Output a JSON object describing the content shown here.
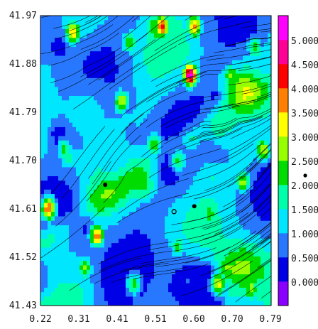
{
  "chart_data": {
    "type": "heatmap",
    "overlay": "streamlines",
    "x_ticks": [
      "0.22",
      "0.31",
      "0.41",
      "0.51",
      "0.60",
      "0.70",
      "0.79"
    ],
    "y_ticks": [
      "41.97",
      "41.88",
      "41.79",
      "41.70",
      "41.61",
      "41.52",
      "41.43"
    ],
    "xlim": [
      0.22,
      0.79
    ],
    "ylim": [
      41.43,
      41.97
    ],
    "colorbar": {
      "labels": [
        "0.000",
        "0.500",
        "1.000",
        "1.500",
        "2.000",
        "2.500",
        "3.000",
        "3.500",
        "4.000",
        "4.500",
        "5.000"
      ],
      "min": -0.5,
      "max": 5.5,
      "colors": [
        "#8a00ff",
        "#0000e6",
        "#2878ff",
        "#00e6ff",
        "#00ffaa",
        "#00dc00",
        "#96ff00",
        "#ffff00",
        "#ff8000",
        "#ff0000",
        "#ff0096",
        "#ff00ff"
      ]
    },
    "markers": [
      {
        "x": 0.38,
        "y": 41.655
      },
      {
        "x": 0.6,
        "y": 41.615
      },
      {
        "x": 0.55,
        "y": 41.605,
        "style": "open"
      }
    ],
    "hotspots": [
      {
        "x": 0.59,
        "y": 41.86,
        "v": 5.2
      },
      {
        "x": 0.52,
        "y": 41.95,
        "v": 4.2
      },
      {
        "x": 0.3,
        "y": 41.94,
        "v": 3.6
      },
      {
        "x": 0.6,
        "y": 41.95,
        "v": 3.8
      },
      {
        "x": 0.42,
        "y": 41.81,
        "v": 3.0
      },
      {
        "x": 0.24,
        "y": 41.61,
        "v": 4.0
      },
      {
        "x": 0.36,
        "y": 41.56,
        "v": 3.8
      },
      {
        "x": 0.33,
        "y": 41.5,
        "v": 2.6
      },
      {
        "x": 0.5,
        "y": 41.73,
        "v": 2.6
      },
      {
        "x": 0.56,
        "y": 41.7,
        "v": 2.2
      },
      {
        "x": 0.72,
        "y": 41.66,
        "v": 2.8
      },
      {
        "x": 0.77,
        "y": 41.72,
        "v": 3.0
      },
      {
        "x": 0.69,
        "y": 41.86,
        "v": 2.6
      },
      {
        "x": 0.75,
        "y": 41.91,
        "v": 2.4
      },
      {
        "x": 0.66,
        "y": 41.47,
        "v": 3.2
      },
      {
        "x": 0.74,
        "y": 41.46,
        "v": 2.8
      },
      {
        "x": 0.56,
        "y": 41.54,
        "v": 2.2
      },
      {
        "x": 0.45,
        "y": 41.47,
        "v": 2.2
      },
      {
        "x": 0.28,
        "y": 41.72,
        "v": 2.2
      },
      {
        "x": 0.44,
        "y": 41.92,
        "v": 2.4
      },
      {
        "x": 0.64,
        "y": 41.6,
        "v": 2.4
      }
    ],
    "vortices": [
      {
        "x": 0.41,
        "y": 41.8
      },
      {
        "x": 0.43,
        "y": 41.68
      },
      {
        "x": 0.63,
        "y": 41.86
      },
      {
        "x": 0.71,
        "y": 41.78
      },
      {
        "x": 0.74,
        "y": 41.93
      },
      {
        "x": 0.62,
        "y": 41.77
      },
      {
        "x": 0.33,
        "y": 41.89
      }
    ]
  }
}
